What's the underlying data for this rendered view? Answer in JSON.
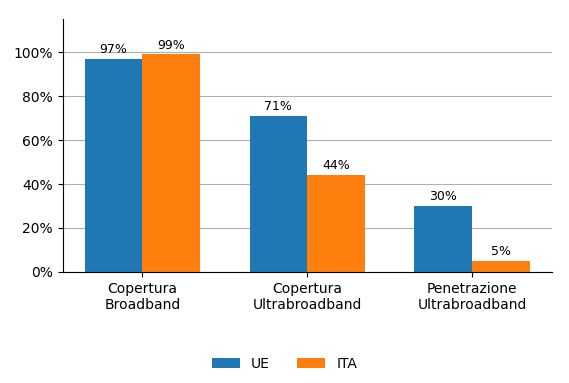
{
  "chart_data": {
    "type": "bar",
    "categories": [
      "Copertura\nBroadband",
      "Copertura\nUltrabroadband",
      "Penetrazione\nUltrabroadband"
    ],
    "series": [
      {
        "name": "UE",
        "values": [
          97,
          71,
          30
        ],
        "value_labels": [
          "97%",
          "71%",
          "30%"
        ]
      },
      {
        "name": "ITA",
        "values": [
          99,
          44,
          5
        ],
        "value_labels": [
          "99%",
          "44%",
          "5%"
        ]
      }
    ],
    "ylim": [
      0,
      115
    ],
    "yticks": [
      {
        "value": 0,
        "label": "0%"
      },
      {
        "value": 20,
        "label": "20%"
      },
      {
        "value": 40,
        "label": "40%"
      },
      {
        "value": 60,
        "label": "60%"
      },
      {
        "value": 80,
        "label": "80%"
      },
      {
        "value": 100,
        "label": "100%"
      }
    ],
    "grid": true,
    "legend": "lower center",
    "data_labels": true
  }
}
